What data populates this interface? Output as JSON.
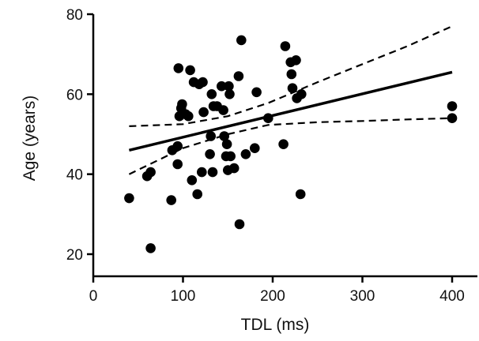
{
  "chart_data": {
    "type": "scatter",
    "title": "",
    "xlabel": "TDL (ms)",
    "ylabel": "Age (years)",
    "xlim": [
      0,
      420
    ],
    "ylim": [
      15,
      80
    ],
    "xticks": [
      0,
      100,
      200,
      300,
      400
    ],
    "yticks": [
      20,
      40,
      60,
      80
    ],
    "grid": false,
    "legend": "none",
    "colors": {
      "points": "#000000",
      "axes": "#000000",
      "fit": "#000000"
    },
    "points": [
      {
        "x": 40,
        "y": 34
      },
      {
        "x": 60,
        "y": 39.5
      },
      {
        "x": 64,
        "y": 40.5
      },
      {
        "x": 64,
        "y": 21.5
      },
      {
        "x": 87,
        "y": 33.5
      },
      {
        "x": 88,
        "y": 46
      },
      {
        "x": 94,
        "y": 47
      },
      {
        "x": 94,
        "y": 42.5
      },
      {
        "x": 95,
        "y": 66.5
      },
      {
        "x": 96,
        "y": 54.5
      },
      {
        "x": 98,
        "y": 56.5
      },
      {
        "x": 99,
        "y": 57.5
      },
      {
        "x": 103,
        "y": 55
      },
      {
        "x": 106,
        "y": 54.5
      },
      {
        "x": 108,
        "y": 66
      },
      {
        "x": 110,
        "y": 38.5
      },
      {
        "x": 112,
        "y": 63
      },
      {
        "x": 116,
        "y": 35
      },
      {
        "x": 118,
        "y": 62.5
      },
      {
        "x": 121,
        "y": 40.5
      },
      {
        "x": 122,
        "y": 63
      },
      {
        "x": 123,
        "y": 55.5
      },
      {
        "x": 130,
        "y": 45
      },
      {
        "x": 131,
        "y": 49.5
      },
      {
        "x": 132,
        "y": 60
      },
      {
        "x": 133,
        "y": 40.5
      },
      {
        "x": 134,
        "y": 57
      },
      {
        "x": 138,
        "y": 57
      },
      {
        "x": 143,
        "y": 62
      },
      {
        "x": 145,
        "y": 56
      },
      {
        "x": 146,
        "y": 49.5
      },
      {
        "x": 148,
        "y": 44.5
      },
      {
        "x": 149,
        "y": 47.5
      },
      {
        "x": 150,
        "y": 41
      },
      {
        "x": 151,
        "y": 62
      },
      {
        "x": 152,
        "y": 60
      },
      {
        "x": 153,
        "y": 44.5
      },
      {
        "x": 157,
        "y": 41.5
      },
      {
        "x": 162,
        "y": 64.5
      },
      {
        "x": 163,
        "y": 27.5
      },
      {
        "x": 165,
        "y": 73.5
      },
      {
        "x": 170,
        "y": 45
      },
      {
        "x": 180,
        "y": 46.5
      },
      {
        "x": 182,
        "y": 60.5
      },
      {
        "x": 195,
        "y": 54
      },
      {
        "x": 212,
        "y": 47.5
      },
      {
        "x": 214,
        "y": 72
      },
      {
        "x": 220,
        "y": 68
      },
      {
        "x": 221,
        "y": 65
      },
      {
        "x": 222,
        "y": 61.5
      },
      {
        "x": 226,
        "y": 68.5
      },
      {
        "x": 227,
        "y": 59
      },
      {
        "x": 231,
        "y": 35
      },
      {
        "x": 232,
        "y": 60
      },
      {
        "x": 400,
        "y": 57
      },
      {
        "x": 400,
        "y": 54
      }
    ],
    "fit_line": {
      "x": [
        40,
        400
      ],
      "y": [
        46,
        65.5
      ]
    },
    "confidence_band": {
      "x": [
        40,
        100,
        150,
        195,
        250,
        300,
        350,
        400
      ],
      "upper": [
        52,
        52.5,
        54.5,
        57.8,
        63,
        67.5,
        72,
        77
      ],
      "lower": [
        40,
        46.5,
        50,
        52.3,
        53,
        53.3,
        53.7,
        54
      ]
    }
  }
}
